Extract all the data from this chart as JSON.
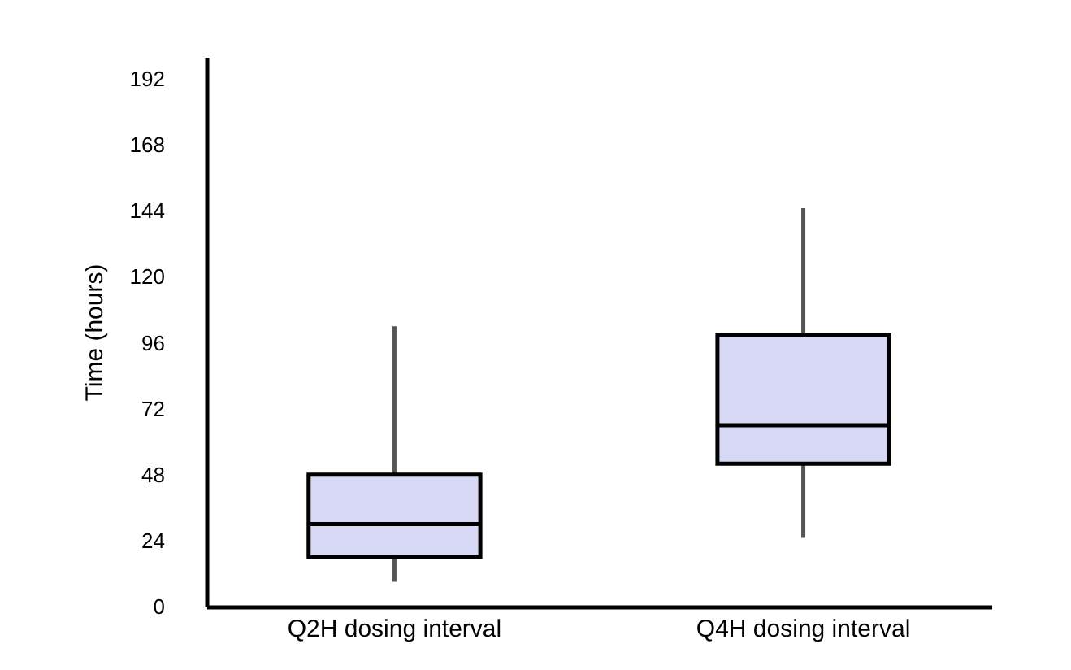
{
  "chart_data": {
    "type": "box",
    "ylabel": "Time (hours)",
    "categories": [
      "Q2H dosing interval",
      "Q4H dosing interval"
    ],
    "boxes": [
      {
        "low": 9,
        "q1": 18,
        "median": 30,
        "q3": 48,
        "high": 102
      },
      {
        "low": 25,
        "q1": 52,
        "median": 66,
        "q3": 99,
        "high": 145
      }
    ],
    "color": "#d6d8f4",
    "ylim": [
      0,
      200
    ],
    "yticks": [
      0,
      24,
      48,
      72,
      96,
      120,
      144,
      168,
      192
    ],
    "grid": false
  }
}
